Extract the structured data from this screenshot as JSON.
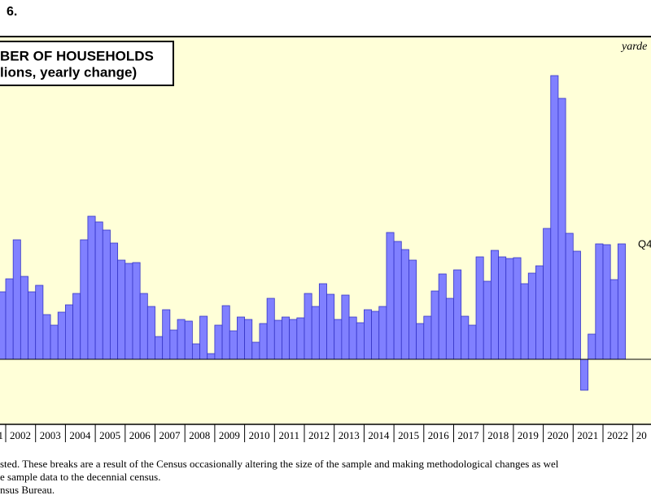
{
  "chart_data": {
    "type": "bar",
    "figure_label": "6.",
    "title": "BER OF HOUSEHOLDS",
    "subtitle": "lions, yearly change)",
    "source_mark": "yarde",
    "last_label": "Q4",
    "x_labels": [
      "1",
      "2002",
      "2003",
      "2004",
      "2005",
      "2006",
      "2007",
      "2008",
      "2009",
      "2010",
      "2011",
      "2012",
      "2013",
      "2014",
      "2015",
      "2016",
      "2017",
      "2018",
      "2019",
      "2020",
      "2021",
      "2022",
      "20"
    ],
    "values": [
      0.83,
      0.99,
      1.47,
      1.02,
      0.83,
      0.91,
      0.55,
      0.42,
      0.58,
      0.67,
      0.81,
      1.47,
      1.76,
      1.69,
      1.59,
      1.43,
      1.22,
      1.18,
      1.19,
      0.81,
      0.65,
      0.28,
      0.61,
      0.36,
      0.49,
      0.47,
      0.19,
      0.53,
      0.07,
      0.42,
      0.66,
      0.35,
      0.52,
      0.49,
      0.21,
      0.44,
      0.75,
      0.48,
      0.52,
      0.49,
      0.51,
      0.81,
      0.65,
      0.93,
      0.8,
      0.49,
      0.79,
      0.52,
      0.45,
      0.61,
      0.59,
      0.65,
      1.56,
      1.45,
      1.35,
      1.22,
      0.44,
      0.53,
      0.84,
      1.05,
      0.75,
      1.1,
      0.53,
      0.42,
      1.26,
      0.96,
      1.34,
      1.26,
      1.24,
      1.25,
      0.93,
      1.06,
      1.15,
      1.61,
      3.49,
      3.21,
      1.55,
      1.33,
      -0.38,
      0.31,
      1.42,
      1.41,
      0.98,
      1.42
    ],
    "color": "#8080ff",
    "ylim": [
      -0.8,
      3.97
    ],
    "notes": [
      "sted. These breaks are a result of the Census occasionally altering the size of the sample and making methodological changes as wel",
      "e sample data to the decennial census.",
      "nsus Bureau."
    ]
  }
}
